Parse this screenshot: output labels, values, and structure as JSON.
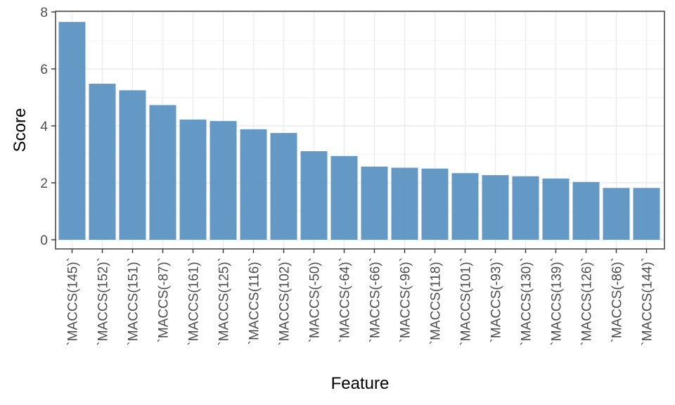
{
  "chart_data": {
    "type": "bar",
    "title": "",
    "xlabel": "Feature",
    "ylabel": "Score",
    "ylim": [
      0,
      8
    ],
    "yticks": [
      "0",
      "2",
      "4",
      "6",
      "8"
    ],
    "categories": [
      "`MACCS(145)`",
      "`MACCS(152)`",
      "`MACCS(151)`",
      "`MACCS(-87)`",
      "`MACCS(161)`",
      "`MACCS(125)`",
      "`MACCS(116)`",
      "`MACCS(102)`",
      "`MACCS(-50)`",
      "`MACCS(-64)`",
      "`MACCS(-66)`",
      "`MACCS(-96)`",
      "`MACCS(118)`",
      "`MACCS(101)`",
      "`MACCS(-93)`",
      "`MACCS(130)`",
      "`MACCS(139)`",
      "`MACCS(126)`",
      "`MACCS(-86)`",
      "`MACCS(144)`"
    ],
    "values": [
      7.65,
      5.48,
      5.25,
      4.73,
      4.22,
      4.17,
      3.88,
      3.75,
      3.11,
      2.94,
      2.57,
      2.53,
      2.5,
      2.34,
      2.27,
      2.23,
      2.15,
      2.03,
      1.82,
      1.82
    ],
    "bar_color": "#5c93c2",
    "grid": true
  }
}
